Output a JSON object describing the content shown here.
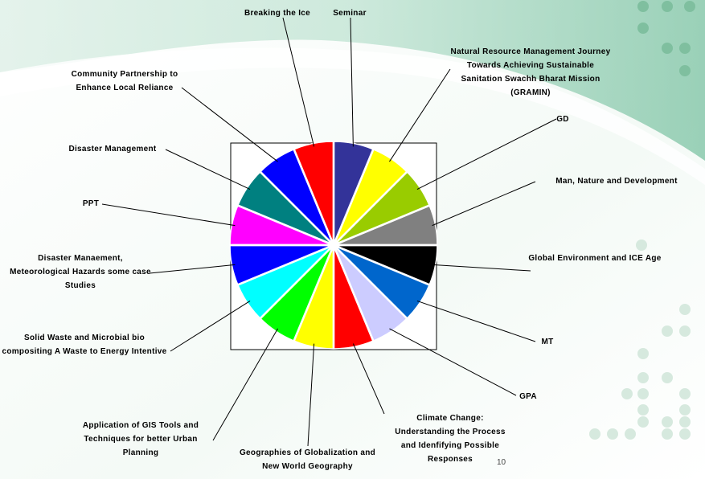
{
  "chart_data": {
    "type": "pie",
    "categories": [
      "Seminar",
      "Natural Resource Management Journey Towards Achieving Sustainable Sanitation Swachh Bharat Mission (GRAMIN)",
      "GD",
      "Man, Nature and Development",
      "Global Environment and ICE Age",
      "MT",
      "GPA",
      "Climate Change: Understanding the Process and Idenfifying Possible Responses",
      "Geographies of Globalization and New World Geography",
      "Application of GIS Tools and Techniques for better Urban Planning",
      "Solid Waste and Microbial bio compositing A Waste to Energy Intentive",
      "Disaster Manaement, Meteorological Hazards some case Studies",
      "PPT",
      "Disaster Management",
      "Community Partnership to Enhance Local Reliance",
      "Breaking the Ice"
    ],
    "values": [
      1,
      1,
      1,
      1,
      1,
      1,
      1,
      1,
      1,
      1,
      1,
      1,
      1,
      1,
      1,
      1
    ],
    "colors": [
      "#333399",
      "#ffff00",
      "#99cc00",
      "#808080",
      "#000000",
      "#0066cc",
      "#ccccff",
      "#ff0000",
      "#ffff00",
      "#00ff00",
      "#00ffff",
      "#0000ff",
      "#ff00ff",
      "#008080",
      "#0000ff",
      "#ff0000"
    ]
  },
  "page_number": "10"
}
